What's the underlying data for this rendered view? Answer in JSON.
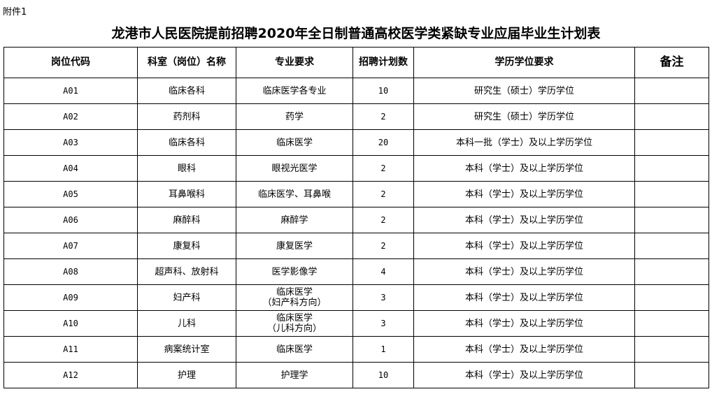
{
  "attachment": "附件1",
  "title": "龙港市人民医院提前招聘2020年全日制普通高校医学类紧缺专业应届毕业生计划表",
  "headers": [
    "岗位代码",
    "科室（岗位）名称",
    "专业要求",
    "招聘计划数",
    "学历学位要求",
    "备注"
  ],
  "rows": [
    {
      "code": "A01",
      "dept": "临床各科",
      "major": "临床医学各专业",
      "major2": "",
      "count": "10",
      "degree": "研究生（硕士）学历学位",
      "note": ""
    },
    {
      "code": "A02",
      "dept": "药剂科",
      "major": "药学",
      "major2": "",
      "count": "2",
      "degree": "研究生（硕士）学历学位",
      "note": ""
    },
    {
      "code": "A03",
      "dept": "临床各科",
      "major": "临床医学",
      "major2": "",
      "count": "20",
      "degree": "本科一批（学士）及以上学历学位",
      "note": ""
    },
    {
      "code": "A04",
      "dept": "眼科",
      "major": "眼视光医学",
      "major2": "",
      "count": "2",
      "degree": "本科（学士）及以上学历学位",
      "note": ""
    },
    {
      "code": "A05",
      "dept": "耳鼻喉科",
      "major": "临床医学、耳鼻喉",
      "major2": "",
      "count": "2",
      "degree": "本科（学士）及以上学历学位",
      "note": ""
    },
    {
      "code": "A06",
      "dept": "麻醉科",
      "major": "麻醉学",
      "major2": "",
      "count": "2",
      "degree": "本科（学士）及以上学历学位",
      "note": ""
    },
    {
      "code": "A07",
      "dept": "康复科",
      "major": "康复医学",
      "major2": "",
      "count": "2",
      "degree": "本科（学士）及以上学历学位",
      "note": ""
    },
    {
      "code": "A08",
      "dept": "超声科、放射科",
      "major": "医学影像学",
      "major2": "",
      "count": "4",
      "degree": "本科（学士）及以上学历学位",
      "note": ""
    },
    {
      "code": "A09",
      "dept": "妇产科",
      "major": "临床医学",
      "major2": "（妇产科方向）",
      "count": "3",
      "degree": "本科（学士）及以上学历学位",
      "note": ""
    },
    {
      "code": "A10",
      "dept": "儿科",
      "major": "临床医学",
      "major2": "（儿科方向）",
      "count": "3",
      "degree": "本科（学士）及以上学历学位",
      "note": ""
    },
    {
      "code": "A11",
      "dept": "病案统计室",
      "major": "临床医学",
      "major2": "",
      "count": "1",
      "degree": "本科（学士）及以上学历学位",
      "note": ""
    },
    {
      "code": "A12",
      "dept": "护理",
      "major": "护理学",
      "major2": "",
      "count": "10",
      "degree": "本科（学士）及以上学历学位",
      "note": ""
    }
  ]
}
